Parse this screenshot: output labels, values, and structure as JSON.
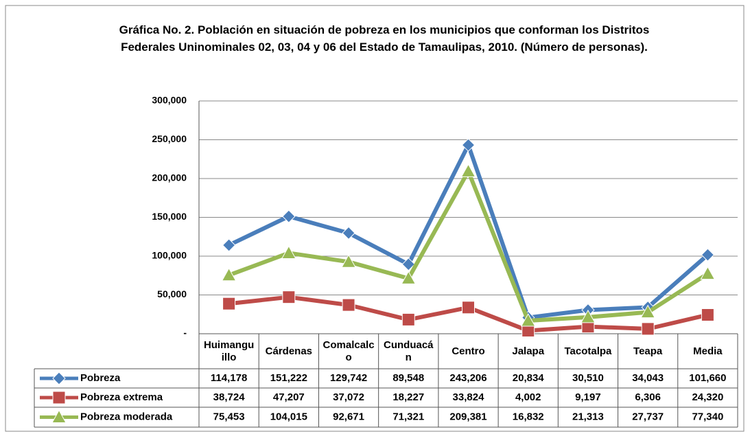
{
  "chart_data": {
    "type": "line",
    "title": "Gráfica No. 2. Población en situación de pobreza en los municipios que conforman los Distritos Federales Uninominales 02, 03, 04 y 06 del Estado de Tamaulipas, 2010. (Número de personas).",
    "categories": [
      "Huimanguillo",
      "Cárdenas",
      "Comalcalco",
      "Cunduacán",
      "Centro",
      "Jalapa",
      "Tacotalpa",
      "Teapa",
      "Media"
    ],
    "series": [
      {
        "name": "Pobreza",
        "color": "#4a7ebb",
        "marker": "diamond",
        "values": [
          114178,
          151222,
          129742,
          89548,
          243206,
          20834,
          30510,
          34043,
          101660
        ],
        "value_labels": [
          "114,178",
          "151,222",
          "129,742",
          "89,548",
          "243,206",
          "20,834",
          "30,510",
          "34,043",
          "101,660"
        ]
      },
      {
        "name": "Pobreza extrema",
        "color": "#be4b48",
        "marker": "square",
        "values": [
          38724,
          47207,
          37072,
          18227,
          33824,
          4002,
          9197,
          6306,
          24320
        ],
        "value_labels": [
          "38,724",
          "47,207",
          "37,072",
          "18,227",
          "33,824",
          "4,002",
          "9,197",
          "6,306",
          "24,320"
        ]
      },
      {
        "name": "Pobreza moderada",
        "color": "#98b954",
        "marker": "triangle",
        "values": [
          75453,
          104015,
          92671,
          71321,
          209381,
          16832,
          21313,
          27737,
          77340
        ],
        "value_labels": [
          "75,453",
          "104,015",
          "92,671",
          "71,321",
          "209,381",
          "16,832",
          "21,313",
          "27,737",
          "77,340"
        ]
      }
    ],
    "ylim": [
      0,
      300000
    ],
    "yticks": [
      {
        "value": 0,
        "label": "-"
      },
      {
        "value": 50000,
        "label": "50,000"
      },
      {
        "value": 100000,
        "label": "100,000"
      },
      {
        "value": 150000,
        "label": "150,000"
      },
      {
        "value": 200000,
        "label": "200,000"
      },
      {
        "value": 250000,
        "label": "250,000"
      },
      {
        "value": 300000,
        "label": "300,000"
      }
    ],
    "grid": true
  }
}
